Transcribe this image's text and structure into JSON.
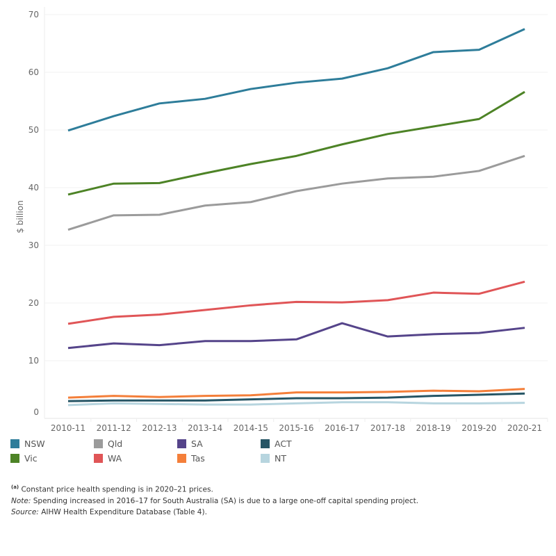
{
  "chart_data": {
    "type": "line",
    "ylabel": "$ billion",
    "xlabel": "",
    "ylim": [
      0,
      70
    ],
    "yticks": [
      0,
      10,
      20,
      30,
      40,
      50,
      60,
      70
    ],
    "grid": "horizontal",
    "legend": "bottom",
    "categories": [
      "2010-11",
      "2011-12",
      "2012-13",
      "2013-14",
      "2014-15",
      "2015-16",
      "2016-17",
      "2017-18",
      "2018-19",
      "2019-20",
      "2020-21"
    ],
    "series": [
      {
        "name": "NSW",
        "color": "#2e7d9a",
        "values": [
          49.9,
          52.4,
          54.6,
          55.4,
          57.1,
          58.2,
          58.9,
          60.7,
          63.5,
          63.9,
          67.5
        ]
      },
      {
        "name": "Vic",
        "color": "#4d8326",
        "values": [
          38.8,
          40.7,
          40.8,
          42.5,
          44.1,
          45.5,
          47.5,
          49.3,
          50.6,
          51.9,
          56.6
        ]
      },
      {
        "name": "Qld",
        "color": "#9b9b9b",
        "values": [
          32.7,
          35.2,
          35.3,
          36.9,
          37.5,
          39.4,
          40.7,
          41.6,
          41.9,
          42.9,
          45.5
        ]
      },
      {
        "name": "WA",
        "color": "#e05557",
        "values": [
          16.4,
          17.6,
          18.0,
          18.8,
          19.6,
          20.2,
          20.1,
          20.5,
          21.8,
          21.6,
          23.7
        ]
      },
      {
        "name": "SA",
        "color": "#55448a",
        "values": [
          12.2,
          13.0,
          12.7,
          13.4,
          13.4,
          13.7,
          16.5,
          14.2,
          14.6,
          14.8,
          15.7
        ]
      },
      {
        "name": "Tas",
        "color": "#f47f3a",
        "values": [
          3.6,
          3.9,
          3.7,
          3.9,
          4.0,
          4.5,
          4.5,
          4.6,
          4.8,
          4.7,
          5.1
        ]
      },
      {
        "name": "ACT",
        "color": "#265565",
        "values": [
          3.0,
          3.1,
          3.1,
          3.1,
          3.3,
          3.5,
          3.5,
          3.6,
          3.9,
          4.1,
          4.3
        ]
      },
      {
        "name": "NT",
        "color": "#b7d5df",
        "values": [
          2.3,
          2.6,
          2.5,
          2.4,
          2.4,
          2.6,
          2.8,
          2.8,
          2.6,
          2.6,
          2.7
        ]
      }
    ]
  },
  "legend_order": [
    "NSW",
    "Qld",
    "SA",
    "ACT",
    "Vic",
    "WA",
    "Tas",
    "NT"
  ],
  "notes": {
    "footnote_marker": "(a)",
    "footnote": "Constant price health spending is in 2020–21 prices.",
    "note_label": "Note:",
    "note": "Spending increased in 2016–17 for South Australia (SA) is due to a large one-off capital spending project.",
    "source_label": "Source:",
    "source": "AIHW Health Expenditure Database (Table 4)."
  }
}
